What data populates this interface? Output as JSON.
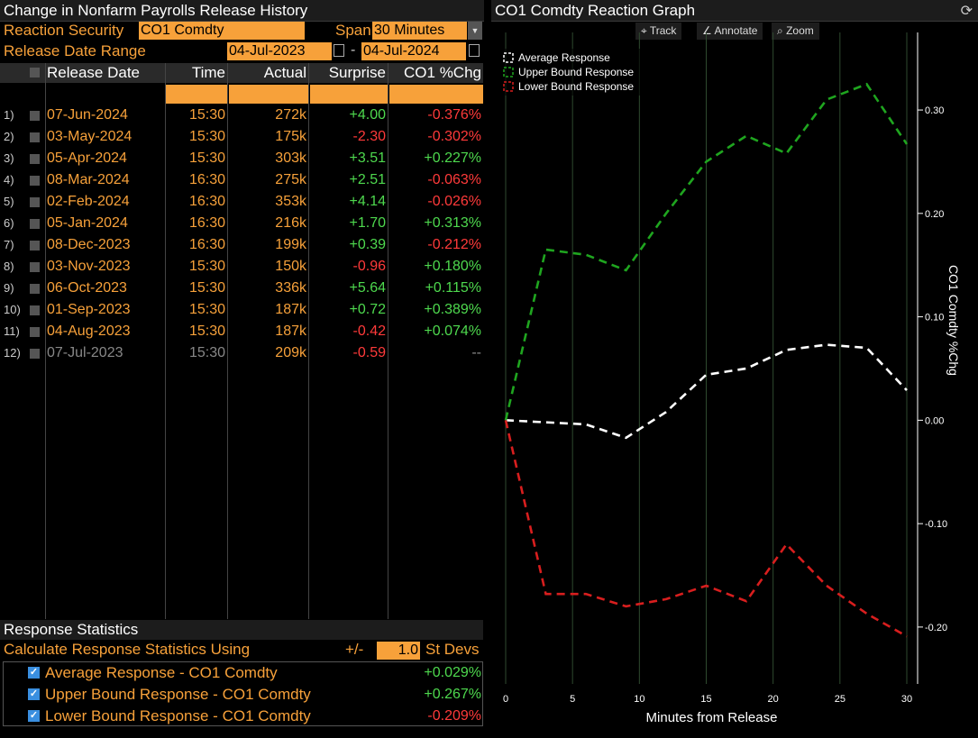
{
  "left": {
    "title": "Change in Nonfarm Payrolls Release History",
    "security_label": "Reaction Security",
    "security_value": "CO1 Comdty",
    "span_label": "Span",
    "span_value": "30 Minutes",
    "range_label": "Release Date Range",
    "range_start": "04-Jul-2023",
    "range_sep": "-",
    "range_end": "04-Jul-2024",
    "columns": [
      "Release Date",
      "Time",
      "Actual",
      "Surprise",
      "CO1 %Chg"
    ],
    "rows": [
      {
        "idx": "1)",
        "date": "07-Jun-2024",
        "time": "15:30",
        "actual": "272k",
        "surprise": "+4.00",
        "chg": "-0.376%",
        "sc": "#4ed94e",
        "cc": "#ff3a3a",
        "dim": false
      },
      {
        "idx": "2)",
        "date": "03-May-2024",
        "time": "15:30",
        "actual": "175k",
        "surprise": "-2.30",
        "chg": "-0.302%",
        "sc": "#ff3a3a",
        "cc": "#ff3a3a",
        "dim": false
      },
      {
        "idx": "3)",
        "date": "05-Apr-2024",
        "time": "15:30",
        "actual": "303k",
        "surprise": "+3.51",
        "chg": "+0.227%",
        "sc": "#4ed94e",
        "cc": "#4ed94e",
        "dim": false
      },
      {
        "idx": "4)",
        "date": "08-Mar-2024",
        "time": "16:30",
        "actual": "275k",
        "surprise": "+2.51",
        "chg": "-0.063%",
        "sc": "#4ed94e",
        "cc": "#ff3a3a",
        "dim": false
      },
      {
        "idx": "5)",
        "date": "02-Feb-2024",
        "time": "16:30",
        "actual": "353k",
        "surprise": "+4.14",
        "chg": "-0.026%",
        "sc": "#4ed94e",
        "cc": "#ff3a3a",
        "dim": false
      },
      {
        "idx": "6)",
        "date": "05-Jan-2024",
        "time": "16:30",
        "actual": "216k",
        "surprise": "+1.70",
        "chg": "+0.313%",
        "sc": "#4ed94e",
        "cc": "#4ed94e",
        "dim": false
      },
      {
        "idx": "7)",
        "date": "08-Dec-2023",
        "time": "16:30",
        "actual": "199k",
        "surprise": "+0.39",
        "chg": "-0.212%",
        "sc": "#4ed94e",
        "cc": "#ff3a3a",
        "dim": false
      },
      {
        "idx": "8)",
        "date": "03-Nov-2023",
        "time": "15:30",
        "actual": "150k",
        "surprise": "-0.96",
        "chg": "+0.180%",
        "sc": "#ff3a3a",
        "cc": "#4ed94e",
        "dim": false
      },
      {
        "idx": "9)",
        "date": "06-Oct-2023",
        "time": "15:30",
        "actual": "336k",
        "surprise": "+5.64",
        "chg": "+0.115%",
        "sc": "#4ed94e",
        "cc": "#4ed94e",
        "dim": false
      },
      {
        "idx": "10)",
        "date": "01-Sep-2023",
        "time": "15:30",
        "actual": "187k",
        "surprise": "+0.72",
        "chg": "+0.389%",
        "sc": "#4ed94e",
        "cc": "#4ed94e",
        "dim": false
      },
      {
        "idx": "11)",
        "date": "04-Aug-2023",
        "time": "15:30",
        "actual": "187k",
        "surprise": "-0.42",
        "chg": "+0.074%",
        "sc": "#ff3a3a",
        "cc": "#4ed94e",
        "dim": false
      },
      {
        "idx": "12)",
        "date": "07-Jul-2023",
        "time": "15:30",
        "actual": "209k",
        "surprise": "-0.59",
        "chg": "--",
        "sc": "#ff3a3a",
        "cc": "#888888",
        "dim": true
      }
    ],
    "stats_title": "Response Statistics",
    "calc_label": "Calculate Response Statistics Using",
    "pm_label": "+/-",
    "stdev_value": "1.0",
    "stdev_label": "St Devs",
    "stats": [
      {
        "label": "Average Response - CO1 Comdty",
        "value": "+0.029%",
        "color": "#4ed94e"
      },
      {
        "label": "Upper Bound Response - CO1 Comdty",
        "value": "+0.267%",
        "color": "#4ed94e"
      },
      {
        "label": "Lower Bound Response - CO1 Comdty",
        "value": "-0.209%",
        "color": "#ff3a3a"
      }
    ]
  },
  "right": {
    "title": "CO1 Comdty Reaction Graph",
    "buttons": [
      "Track",
      "Annotate",
      "Zoom"
    ],
    "refresh_icon": "refresh-icon"
  },
  "chart_data": {
    "type": "line",
    "xlabel": "Minutes from Release",
    "ylabel": "CO1 Comdty %Chg",
    "xlim": [
      0,
      30
    ],
    "ylim": [
      -0.255,
      0.375
    ],
    "xticks": [
      0,
      5,
      10,
      15,
      20,
      25,
      30
    ],
    "yticks": [
      0.3,
      0.2,
      0.1,
      0.0,
      -0.1,
      -0.2
    ],
    "ytick_labels": [
      "0.30",
      "0.20",
      "0.10",
      "0.00",
      "-0.10",
      "-0.20"
    ],
    "legend_position": "top-left",
    "grid": "vertical",
    "x": [
      0,
      3,
      6,
      9,
      12,
      15,
      18,
      21,
      24,
      27,
      30
    ],
    "series": [
      {
        "name": "Average Response",
        "color": "#ffffff",
        "values": [
          0.0,
          -0.002,
          -0.004,
          -0.017,
          0.008,
          0.044,
          0.05,
          0.068,
          0.073,
          0.07,
          0.029
        ]
      },
      {
        "name": "Upper Bound Response",
        "color": "#1fa51f",
        "values": [
          0.0,
          0.165,
          0.16,
          0.145,
          0.2,
          0.25,
          0.275,
          0.258,
          0.31,
          0.325,
          0.267
        ]
      },
      {
        "name": "Lower Bound Response",
        "color": "#d81e1e",
        "values": [
          0.0,
          -0.168,
          -0.168,
          -0.18,
          -0.173,
          -0.16,
          -0.175,
          -0.12,
          -0.16,
          -0.187,
          -0.209
        ]
      }
    ]
  }
}
